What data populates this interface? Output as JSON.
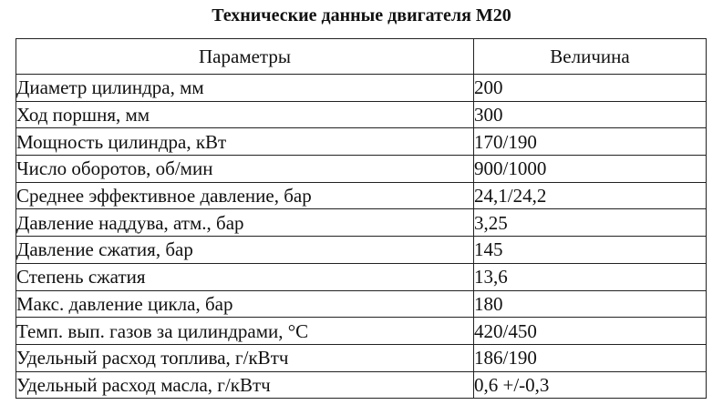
{
  "title": "Технические данные двигателя М20",
  "table": {
    "headers": [
      "Параметры",
      "Величина"
    ],
    "rows": [
      {
        "param": "Диаметр цилиндра, мм",
        "value": "200"
      },
      {
        "param": "Ход поршня, мм",
        "value": "300"
      },
      {
        "param": "Мощность цилиндра,  кВт",
        "value": "170/190"
      },
      {
        "param": "Число оборотов, об/мин",
        "value": "900/1000"
      },
      {
        "param": "Среднее  эффективное давление, бар",
        "value": "24,1/24,2"
      },
      {
        "param": "Давление наддува, атм., бар",
        "value": "3,25"
      },
      {
        "param": "Давление сжатия, бар",
        "value": "145"
      },
      {
        "param": "Степень сжатия",
        "value": "13,6"
      },
      {
        "param": "Макс. давление цикла, бар",
        "value": "180"
      },
      {
        "param": "Темп. вып. газов за цилиндрами, °С",
        "value": "420/450"
      },
      {
        "param": "Удельный  расход топлива, г/кВтч",
        "value": "186/190"
      },
      {
        "param": "Удельный  расход масла, г/кВтч",
        "value": "0,6 +/-0,3"
      }
    ]
  }
}
